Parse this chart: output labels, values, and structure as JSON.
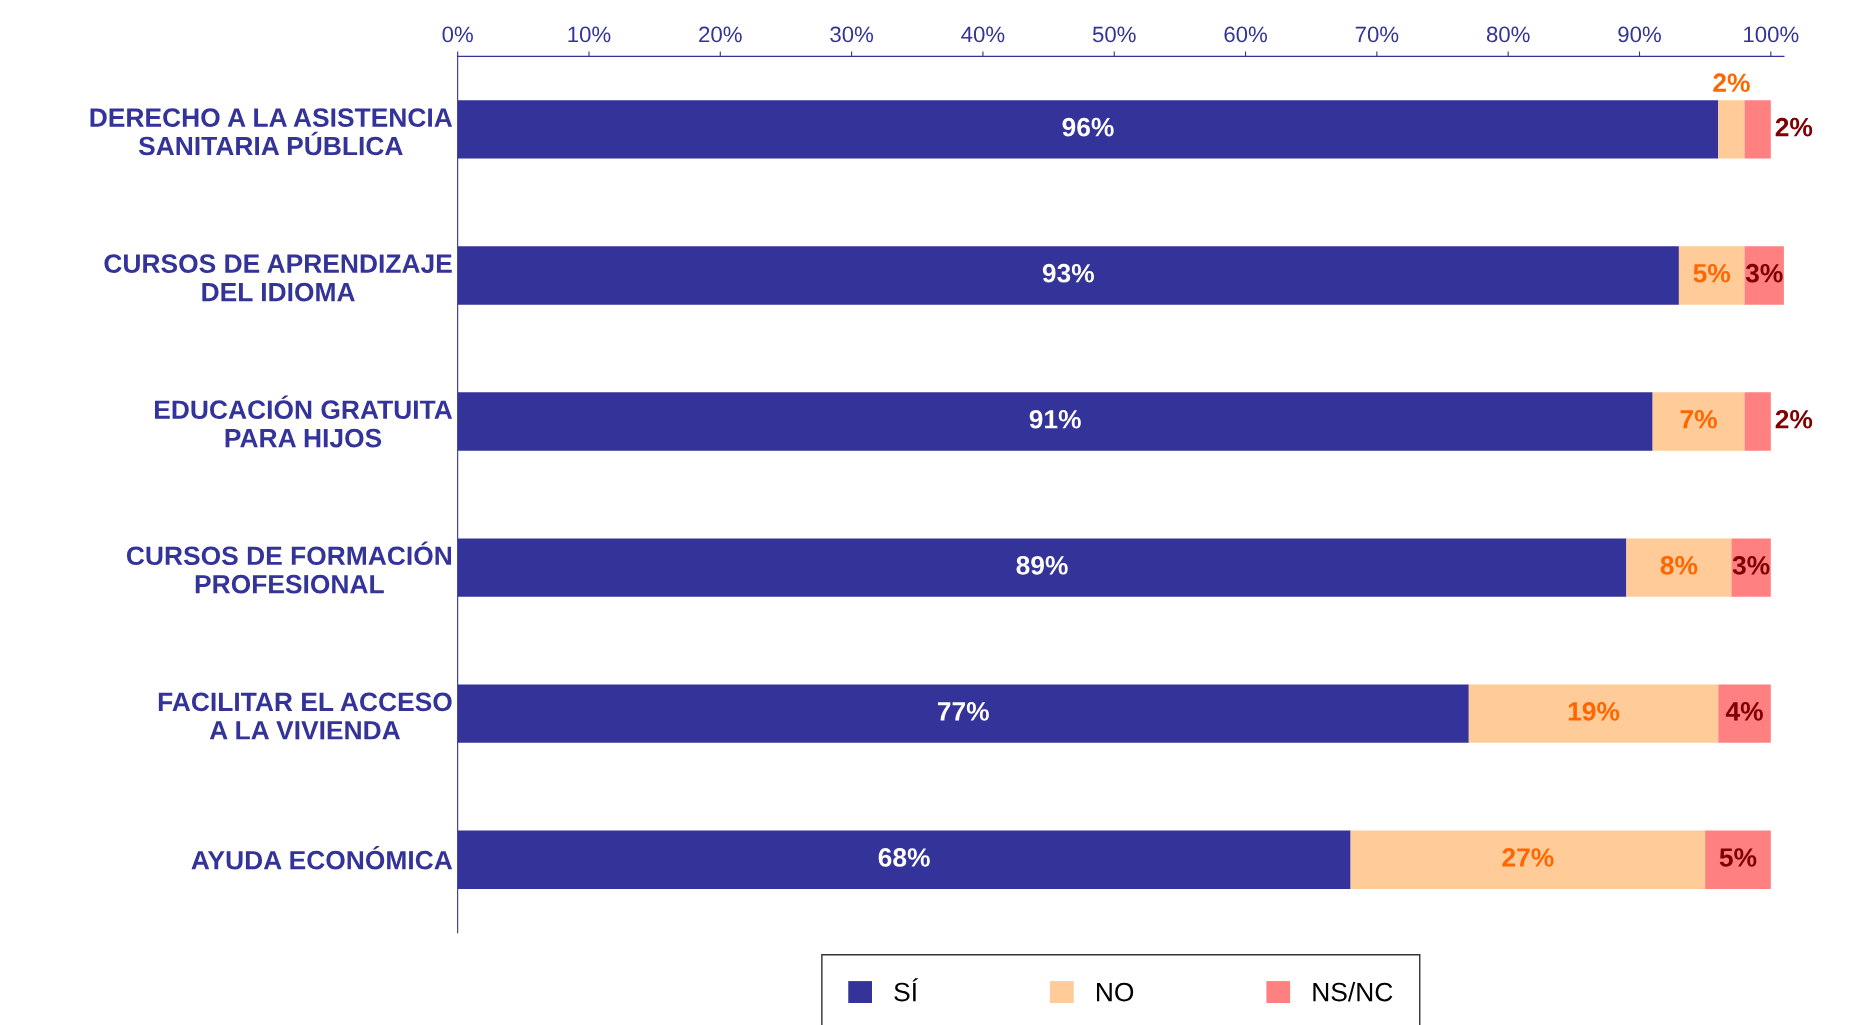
{
  "chart_data": {
    "type": "bar",
    "orientation": "horizontal",
    "stacked": true,
    "categories": [
      "DERECHO A LA ASISTENCIA SANITARIA PÚBLICA",
      "CURSOS DE APRENDIZAJE DEL IDIOMA",
      "EDUCACIÓN GRATUITA PARA HIJOS",
      "CURSOS DE FORMACIÓN PROFESIONAL",
      "FACILITAR EL ACCESO A LA VIVIENDA",
      "AYUDA ECONÓMICA"
    ],
    "series": [
      {
        "name": "SÍ",
        "color": "#333399",
        "values": [
          96,
          93,
          91,
          89,
          77,
          68
        ],
        "value_labels": [
          "96%",
          "93%",
          "91%",
          "89%",
          "77%",
          "68%"
        ]
      },
      {
        "name": "NO",
        "color": "#ffcc99",
        "values": [
          2,
          5,
          7,
          8,
          19,
          27
        ],
        "value_labels": [
          "2%",
          "5%",
          "7%",
          "8%",
          "19%",
          "27%"
        ]
      },
      {
        "name": "NS/NC",
        "color": "#ff8080",
        "values": [
          2,
          3,
          2,
          3,
          4,
          5
        ],
        "value_labels": [
          "2%",
          "3%",
          "2%",
          "3%",
          "4%",
          "5%"
        ]
      }
    ],
    "xlim": [
      0,
      101
    ],
    "xticks": [
      {
        "value": 0,
        "label": "0%"
      },
      {
        "value": 10,
        "label": "10%"
      },
      {
        "value": 20,
        "label": "20%"
      },
      {
        "value": 30,
        "label": "30%"
      },
      {
        "value": 40,
        "label": "40%"
      },
      {
        "value": 50,
        "label": "50%"
      },
      {
        "value": 60,
        "label": "60%"
      },
      {
        "value": 70,
        "label": "70%"
      },
      {
        "value": 80,
        "label": "80%"
      },
      {
        "value": 90,
        "label": "90%"
      },
      {
        "value": 100,
        "label": "100%"
      }
    ],
    "grid": false,
    "legend": "bottom"
  }
}
